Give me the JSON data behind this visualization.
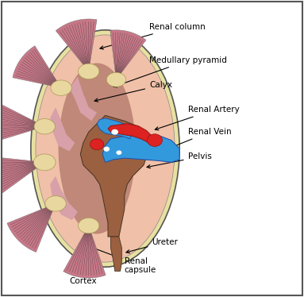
{
  "bg_color": "#ffffff",
  "capsule_color": "#e8e0a0",
  "cortex_color": "#f0c0a8",
  "medulla_bg_color": "#c08878",
  "pyramid_color": "#c87888",
  "pyramid_light_color": "#e0a0b0",
  "calyx_color": "#e8d8a0",
  "pelvis_color": "#9b6040",
  "renal_artery_color": "#dd2222",
  "renal_vein_color": "#3399dd",
  "hilum_white": "#ffffff",
  "ureter_color": "#9b6040",
  "label_color": "#000000",
  "border_color": "#555555",
  "labels": {
    "renal_column": "Renal column",
    "medullary_pyramid": "Medullary pyramid",
    "calyx": "Calyx",
    "renal_artery": "Renal Artery",
    "renal_vein": "Renal Vein",
    "pelvis": "Pelvis",
    "ureter": "Ureter",
    "renal_capsule": "Renal\ncapsule",
    "cortex": "Cortex"
  }
}
